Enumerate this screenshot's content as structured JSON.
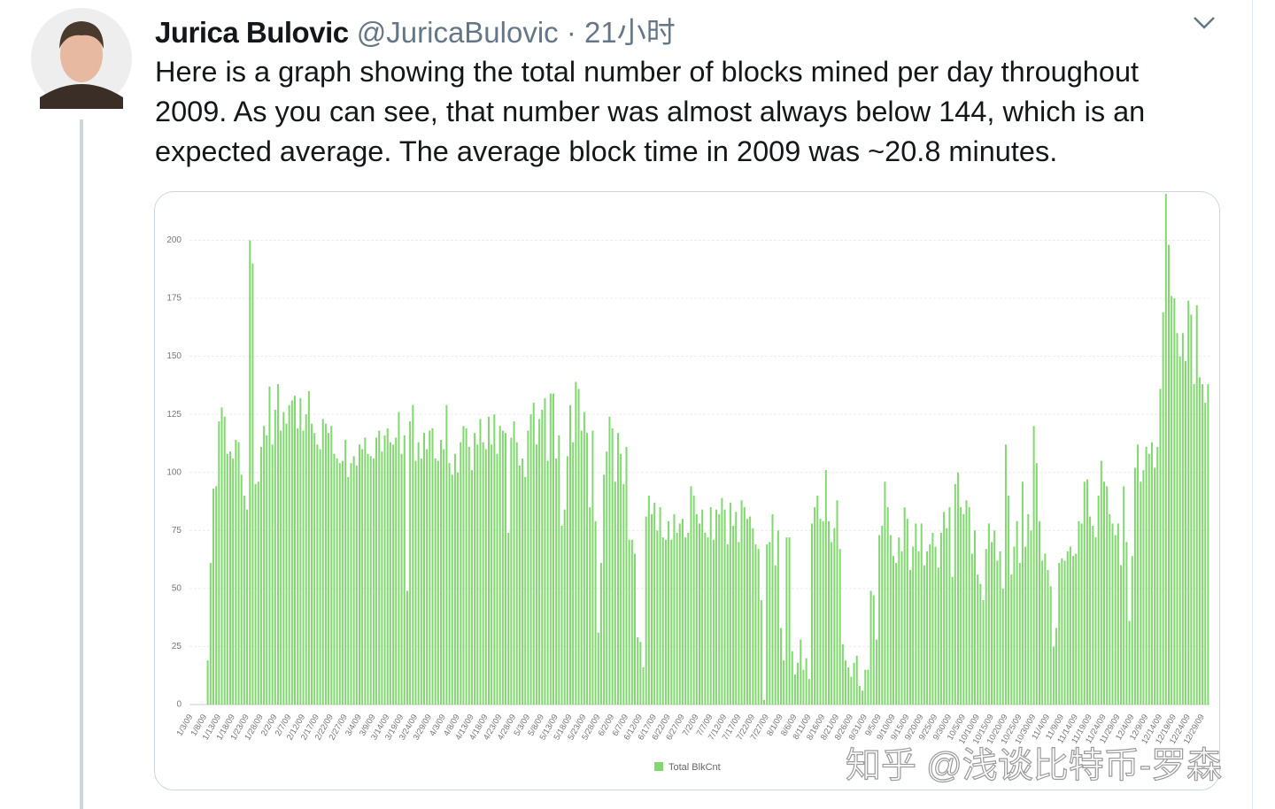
{
  "tweet": {
    "author": "Jurica Bulovic",
    "handle": "@JuricaBulovic",
    "separator": "·",
    "time": "21小时",
    "text": "Here is a graph showing the total number of blocks mined per day throughout 2009. As you can see, that number was almost always below 144, which is an expected average. The average block time in 2009 was ~20.8 minutes.",
    "watermark": "知乎 @浅谈比特币-罗森"
  },
  "chart_data": {
    "type": "bar",
    "grid": true,
    "ylim": [
      0,
      220
    ],
    "yticks": [
      0,
      25,
      50,
      75,
      100,
      125,
      150,
      175,
      200
    ],
    "legend": "bottom",
    "categories": [
      "1/3/09",
      null,
      null,
      null,
      null,
      "1/8/09",
      null,
      null,
      null,
      null,
      "1/13/09",
      null,
      null,
      null,
      null,
      "1/18/09",
      null,
      null,
      null,
      null,
      "1/23/09",
      null,
      null,
      null,
      null,
      "1/28/09",
      null,
      null,
      null,
      null,
      "2/2/09",
      null,
      null,
      null,
      null,
      "2/7/09",
      null,
      null,
      null,
      null,
      "2/12/09",
      null,
      null,
      null,
      null,
      "2/17/09",
      null,
      null,
      null,
      null,
      "2/22/09",
      null,
      null,
      null,
      null,
      "2/27/09",
      null,
      null,
      null,
      null,
      "3/4/09",
      null,
      null,
      null,
      null,
      "3/9/09",
      null,
      null,
      null,
      null,
      "3/14/09",
      null,
      null,
      null,
      null,
      "3/19/09",
      null,
      null,
      null,
      null,
      "3/24/09",
      null,
      null,
      null,
      null,
      "3/29/09",
      null,
      null,
      null,
      null,
      "4/3/09",
      null,
      null,
      null,
      null,
      "4/8/09",
      null,
      null,
      null,
      null,
      "4/13/09",
      null,
      null,
      null,
      null,
      "4/18/09",
      null,
      null,
      null,
      null,
      "4/23/09",
      null,
      null,
      null,
      null,
      "4/28/09",
      null,
      null,
      null,
      null,
      "5/3/09",
      null,
      null,
      null,
      null,
      "5/8/09",
      null,
      null,
      null,
      null,
      "5/13/09",
      null,
      null,
      null,
      null,
      "5/18/09",
      null,
      null,
      null,
      null,
      "5/23/09",
      null,
      null,
      null,
      null,
      "5/28/09",
      null,
      null,
      null,
      null,
      "6/2/09",
      null,
      null,
      null,
      null,
      "6/7/09",
      null,
      null,
      null,
      null,
      "6/12/09",
      null,
      null,
      null,
      null,
      "6/17/09",
      null,
      null,
      null,
      null,
      "6/22/09",
      null,
      null,
      null,
      null,
      "6/27/09",
      null,
      null,
      null,
      null,
      "7/2/09",
      null,
      null,
      null,
      null,
      "7/7/09",
      null,
      null,
      null,
      null,
      "7/12/09",
      null,
      null,
      null,
      null,
      "7/17/09",
      null,
      null,
      null,
      null,
      "7/22/09",
      null,
      null,
      null,
      null,
      "7/27/09",
      null,
      null,
      null,
      null,
      "8/1/09",
      null,
      null,
      null,
      null,
      "8/6/09",
      null,
      null,
      null,
      null,
      "8/11/09",
      null,
      null,
      null,
      null,
      "8/16/09",
      null,
      null,
      null,
      null,
      "8/21/09",
      null,
      null,
      null,
      null,
      "8/26/09",
      null,
      null,
      null,
      null,
      "8/31/09",
      null,
      null,
      null,
      null,
      "9/5/09",
      null,
      null,
      null,
      null,
      "9/10/09",
      null,
      null,
      null,
      null,
      "9/15/09",
      null,
      null,
      null,
      null,
      "9/20/09",
      null,
      null,
      null,
      null,
      "9/25/09",
      null,
      null,
      null,
      null,
      "9/30/09",
      null,
      null,
      null,
      null,
      "10/5/09",
      null,
      null,
      null,
      null,
      "10/10/09",
      null,
      null,
      null,
      null,
      "10/15/09",
      null,
      null,
      null,
      null,
      "10/20/09",
      null,
      null,
      null,
      null,
      "10/25/09",
      null,
      null,
      null,
      null,
      "10/30/09",
      null,
      null,
      null,
      null,
      "11/4/09",
      null,
      null,
      null,
      null,
      "11/9/09",
      null,
      null,
      null,
      null,
      "11/14/09",
      null,
      null,
      null,
      null,
      "11/19/09",
      null,
      null,
      null,
      null,
      "11/24/09",
      null,
      null,
      null,
      null,
      "11/29/09",
      null,
      null,
      null,
      null,
      "12/4/09",
      null,
      null,
      null,
      null,
      "12/9/09",
      null,
      null,
      null,
      null,
      "12/14/09",
      null,
      null,
      null,
      null,
      "12/19/09",
      null,
      null,
      null,
      null,
      "12/24/09",
      null,
      null,
      null,
      null,
      "12/29/09",
      null,
      null
    ],
    "series": [
      {
        "name": "Total BlkCnt",
        "color": "#80d86f",
        "values": [
          0,
          0,
          0,
          0,
          0,
          0,
          19,
          61,
          93,
          94,
          122,
          128,
          124,
          108,
          109,
          106,
          114,
          113,
          99,
          90,
          84,
          200,
          190,
          95,
          96,
          111,
          120,
          116,
          137,
          112,
          127,
          138,
          118,
          126,
          121,
          129,
          131,
          133,
          119,
          132,
          118,
          125,
          135,
          121,
          117,
          112,
          110,
          123,
          121,
          117,
          120,
          108,
          106,
          104,
          105,
          114,
          98,
          104,
          107,
          103,
          112,
          110,
          115,
          108,
          107,
          106,
          115,
          118,
          109,
          116,
          119,
          113,
          112,
          115,
          126,
          108,
          116,
          49,
          122,
          129,
          105,
          113,
          106,
          117,
          110,
          118,
          119,
          106,
          105,
          114,
          110,
          129,
          104,
          99,
          108,
          100,
          113,
          120,
          119,
          111,
          101,
          117,
          112,
          123,
          113,
          110,
          124,
          112,
          125,
          108,
          120,
          118,
          117,
          74,
          115,
          122,
          113,
          103,
          106,
          98,
          118,
          125,
          130,
          112,
          123,
          127,
          132,
          105,
          134,
          134,
          106,
          116,
          77,
          84,
          107,
          129,
          113,
          139,
          136,
          118,
          126,
          117,
          85,
          118,
          79,
          31,
          61,
          99,
          109,
          124,
          119,
          96,
          117,
          108,
          95,
          111,
          71,
          71,
          65,
          29,
          27,
          16,
          81,
          90,
          82,
          87,
          75,
          85,
          72,
          71,
          79,
          71,
          82,
          74,
          78,
          80,
          72,
          74,
          94,
          90,
          82,
          78,
          84,
          74,
          72,
          85,
          71,
          84,
          82,
          89,
          84,
          69,
          87,
          77,
          83,
          70,
          88,
          85,
          80,
          81,
          76,
          69,
          67,
          45,
          2,
          69,
          70,
          82,
          60,
          75,
          33,
          19,
          72,
          72,
          23,
          13,
          18,
          28,
          15,
          20,
          11,
          78,
          85,
          90,
          80,
          79,
          101,
          79,
          70,
          76,
          88,
          67,
          26,
          19,
          16,
          12,
          18,
          21,
          8,
          6,
          15,
          15,
          49,
          47,
          28,
          73,
          77,
          96,
          85,
          73,
          64,
          61,
          72,
          66,
          85,
          80,
          58,
          68,
          78,
          66,
          78,
          60,
          66,
          69,
          74,
          68,
          59,
          74,
          83,
          76,
          85,
          55,
          95,
          100,
          85,
          82,
          88,
          85,
          65,
          75,
          56,
          52,
          45,
          67,
          78,
          70,
          75,
          62,
          66,
          50,
          112,
          90,
          56,
          68,
          79,
          61,
          96,
          68,
          82,
          75,
          120,
          104,
          79,
          62,
          65,
          58,
          51,
          25,
          33,
          61,
          63,
          62,
          66,
          68,
          64,
          65,
          79,
          78,
          96,
          97,
          81,
          77,
          72,
          90,
          105,
          96,
          94,
          82,
          78,
          73,
          78,
          60,
          94,
          70,
          36,
          64,
          102,
          112,
          96,
          101,
          111,
          108,
          113,
          102,
          111,
          136,
          169,
          220,
          198,
          176,
          175,
          160,
          150,
          160,
          148,
          174,
          168,
          138,
          172,
          141,
          138,
          130,
          138
        ]
      }
    ]
  }
}
